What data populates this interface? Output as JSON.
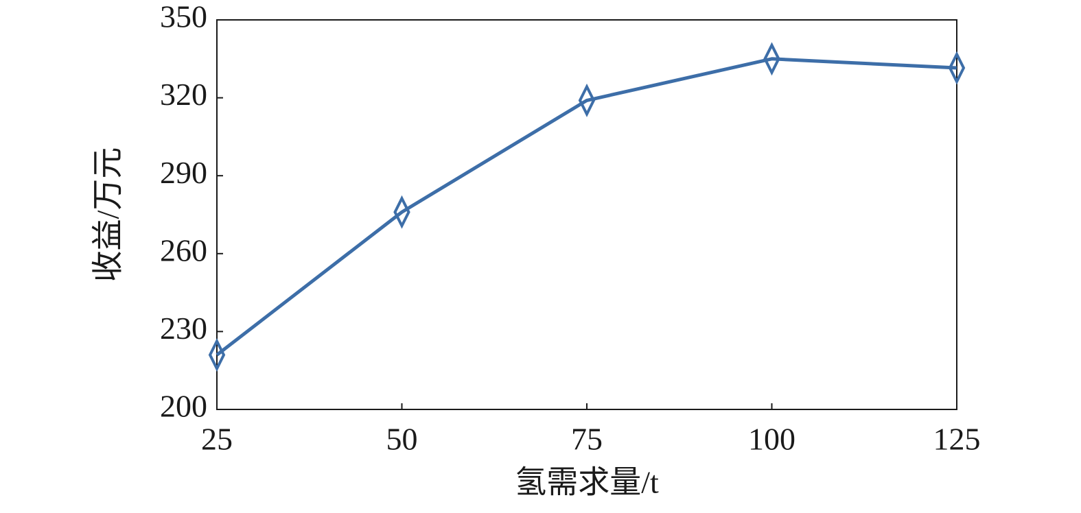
{
  "chart_data": {
    "type": "line",
    "x_label": "氢需求量/t",
    "y_label": "收益/万元",
    "x": [
      25,
      50,
      75,
      100,
      125
    ],
    "values": [
      221,
      276,
      319,
      335,
      331.5
    ],
    "color": "#3d6ea8",
    "marker": "diamond",
    "xlim": [
      25,
      125
    ],
    "xticks": [
      25,
      50,
      75,
      100,
      125
    ],
    "ylim": [
      200,
      350
    ],
    "yticks": [
      200,
      230,
      260,
      290,
      320,
      350
    ],
    "grid": false
  }
}
